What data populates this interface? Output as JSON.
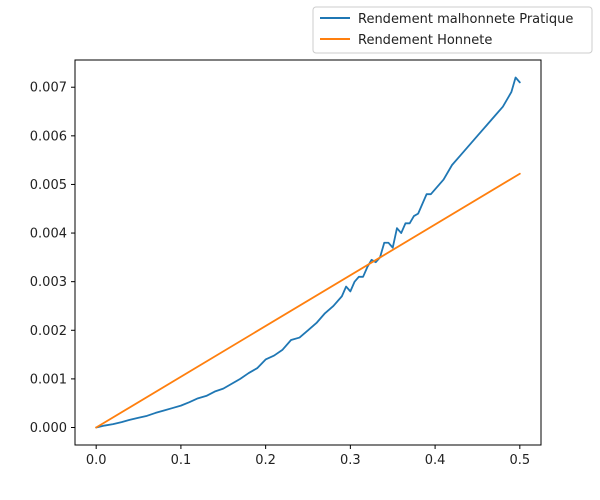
{
  "chart_data": {
    "type": "line",
    "xlim": [
      -0.025,
      0.525
    ],
    "ylim": [
      -0.00036,
      0.00756
    ],
    "xticks": [
      0.0,
      0.1,
      0.2,
      0.3,
      0.4,
      0.5
    ],
    "xtick_labels": [
      "0.0",
      "0.1",
      "0.2",
      "0.3",
      "0.4",
      "0.5"
    ],
    "yticks": [
      0.0,
      0.001,
      0.002,
      0.003,
      0.004,
      0.005,
      0.006,
      0.007
    ],
    "ytick_labels": [
      "0.000",
      "0.001",
      "0.002",
      "0.003",
      "0.004",
      "0.005",
      "0.006",
      "0.007"
    ],
    "grid": false,
    "legend_position": "above-right",
    "series": [
      {
        "name": "Rendement malhonnete Pratique",
        "color": "#1f77b4",
        "x": [
          0.0,
          0.01,
          0.02,
          0.03,
          0.04,
          0.05,
          0.06,
          0.07,
          0.08,
          0.09,
          0.1,
          0.11,
          0.12,
          0.13,
          0.14,
          0.15,
          0.16,
          0.17,
          0.18,
          0.19,
          0.2,
          0.21,
          0.22,
          0.23,
          0.24,
          0.25,
          0.26,
          0.27,
          0.28,
          0.29,
          0.295,
          0.3,
          0.305,
          0.31,
          0.315,
          0.32,
          0.325,
          0.33,
          0.335,
          0.34,
          0.345,
          0.35,
          0.355,
          0.36,
          0.365,
          0.37,
          0.375,
          0.38,
          0.385,
          0.39,
          0.395,
          0.4,
          0.41,
          0.42,
          0.43,
          0.44,
          0.45,
          0.46,
          0.47,
          0.48,
          0.49,
          0.495,
          0.5
        ],
        "y": [
          0.0,
          4e-05,
          7e-05,
          0.00011,
          0.00016,
          0.0002,
          0.00024,
          0.0003,
          0.00035,
          0.0004,
          0.00045,
          0.00052,
          0.0006,
          0.00065,
          0.00074,
          0.0008,
          0.0009,
          0.001,
          0.00112,
          0.00122,
          0.0014,
          0.00148,
          0.0016,
          0.0018,
          0.00185,
          0.002,
          0.00215,
          0.00235,
          0.0025,
          0.0027,
          0.0029,
          0.0028,
          0.003,
          0.0031,
          0.0031,
          0.0033,
          0.00345,
          0.0034,
          0.0035,
          0.0038,
          0.0038,
          0.0037,
          0.0041,
          0.004,
          0.0042,
          0.0042,
          0.00435,
          0.0044,
          0.0046,
          0.0048,
          0.0048,
          0.0049,
          0.0051,
          0.0054,
          0.0056,
          0.0058,
          0.006,
          0.0062,
          0.0064,
          0.0066,
          0.0069,
          0.0072,
          0.0071
        ]
      },
      {
        "name": "Rendement Honnete",
        "color": "#ff7f0e",
        "x": [
          0.0,
          0.5
        ],
        "y": [
          0.0,
          0.00522
        ]
      }
    ]
  }
}
